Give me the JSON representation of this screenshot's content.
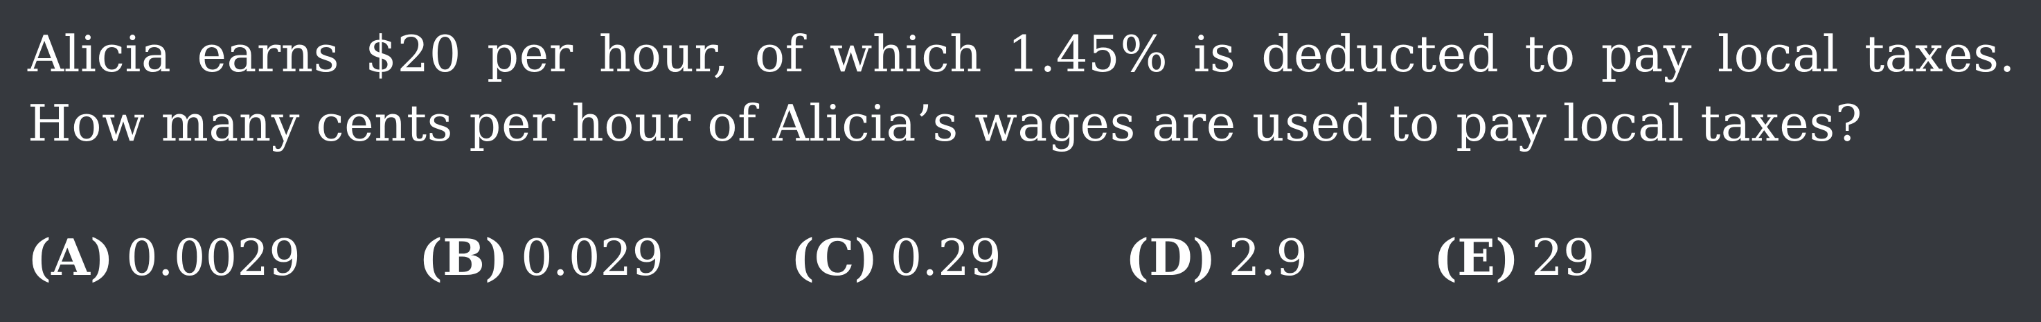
{
  "question": {
    "text": "Alicia earns $20 per hour, of which 1.45% is deducted to pay local taxes. How many cents per hour of Alicia’s wages are used to pay local taxes?"
  },
  "choices": [
    {
      "letter": "(A)",
      "value": "0.0029"
    },
    {
      "letter": "(B)",
      "value": "0.029"
    },
    {
      "letter": "(C)",
      "value": "0.29"
    },
    {
      "letter": "(D)",
      "value": "2.9"
    },
    {
      "letter": "(E)",
      "value": "29"
    }
  ]
}
